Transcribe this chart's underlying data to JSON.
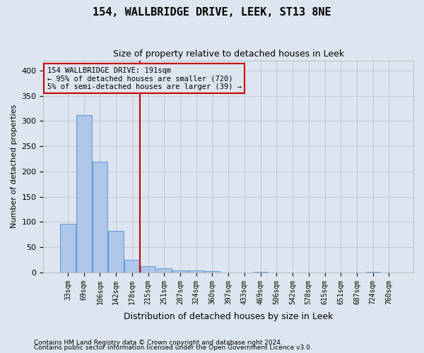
{
  "title": "154, WALLBRIDGE DRIVE, LEEK, ST13 8NE",
  "subtitle": "Size of property relative to detached houses in Leek",
  "xlabel": "Distribution of detached houses by size in Leek",
  "ylabel": "Number of detached properties",
  "footnote1": "Contains HM Land Registry data © Crown copyright and database right 2024.",
  "footnote2": "Contains public sector information licensed under the Open Government Licence v3.0.",
  "annotation_line1": "154 WALLBRIDGE DRIVE: 191sqm",
  "annotation_line2": "← 95% of detached houses are smaller (720)",
  "annotation_line3": "5% of semi-detached houses are larger (39) →",
  "bar_color": "#aec6e8",
  "bar_edge_color": "#5b9bd5",
  "grid_color": "#c0c8d8",
  "bg_color": "#dde6f0",
  "red_line_color": "#cc0000",
  "annotation_box_color": "#cc0000",
  "bin_labels": [
    "33sqm",
    "69sqm",
    "106sqm",
    "142sqm",
    "178sqm",
    "215sqm",
    "251sqm",
    "287sqm",
    "324sqm",
    "360sqm",
    "397sqm",
    "433sqm",
    "469sqm",
    "506sqm",
    "542sqm",
    "578sqm",
    "615sqm",
    "651sqm",
    "687sqm",
    "724sqm",
    "760sqm"
  ],
  "bar_values": [
    97,
    312,
    220,
    82,
    25,
    13,
    8,
    4,
    4,
    3,
    0,
    0,
    1,
    0,
    0,
    0,
    0,
    0,
    0,
    1,
    0
  ],
  "red_line_x": 4.5,
  "ylim": [
    0,
    420
  ],
  "yticks": [
    0,
    50,
    100,
    150,
    200,
    250,
    300,
    350,
    400
  ]
}
